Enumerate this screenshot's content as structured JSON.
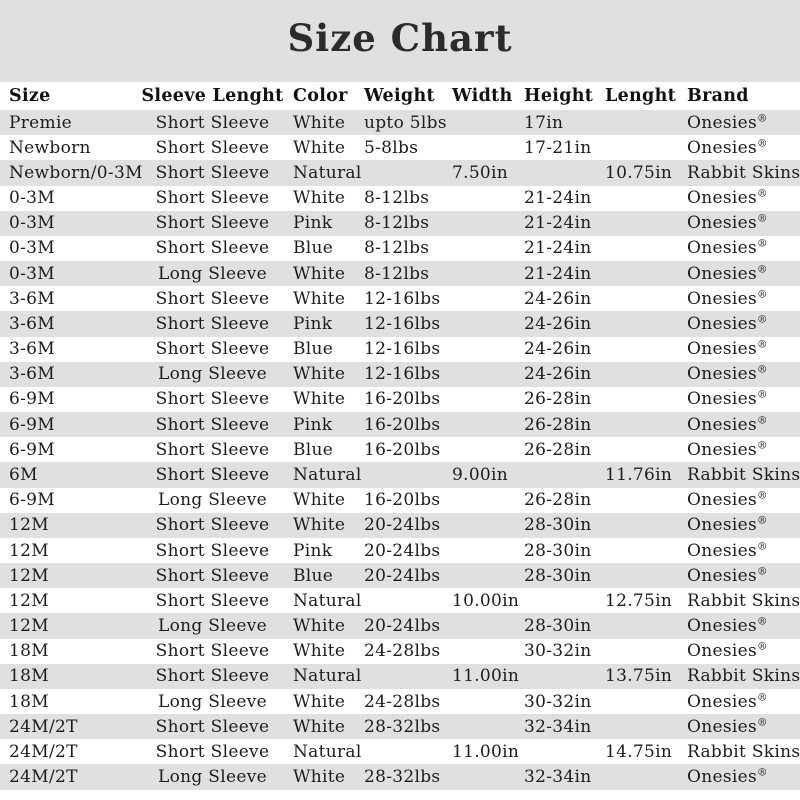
{
  "title": "Size Chart",
  "colors": {
    "band_gray": "#e0e0e0",
    "row_alt_gray": "#e0e0e0",
    "row_white": "#ffffff",
    "text": "#1c1c1c",
    "title_text": "#2b2b2b"
  },
  "chart_data": {
    "type": "table",
    "title": "Size Chart",
    "layout": {
      "stripe_pattern": "odd-rows-gray",
      "grid": false
    },
    "columns": [
      {
        "key": "size",
        "label": "Size"
      },
      {
        "key": "sleeve",
        "label": "Sleeve Lenght"
      },
      {
        "key": "color",
        "label": "Color"
      },
      {
        "key": "weight",
        "label": "Weight"
      },
      {
        "key": "width",
        "label": "Width"
      },
      {
        "key": "height",
        "label": "Height"
      },
      {
        "key": "lenght",
        "label": "Lenght"
      },
      {
        "key": "brand",
        "label": "Brand"
      }
    ],
    "rows": [
      [
        "Premie",
        "Short Sleeve",
        "White",
        "upto 5lbs",
        "",
        "17in",
        "",
        "Onesies®"
      ],
      [
        "Newborn",
        "Short Sleeve",
        "White",
        "5-8lbs",
        "",
        "17-21in",
        "",
        "Onesies®"
      ],
      [
        "Newborn/0-3M",
        "Short Sleeve",
        "Natural",
        "",
        "7.50in",
        "",
        "10.75in",
        "Rabbit Skins®"
      ],
      [
        "0-3M",
        "Short Sleeve",
        "White",
        "8-12lbs",
        "",
        "21-24in",
        "",
        "Onesies®"
      ],
      [
        "0-3M",
        "Short Sleeve",
        "Pink",
        "8-12lbs",
        "",
        "21-24in",
        "",
        "Onesies®"
      ],
      [
        "0-3M",
        "Short Sleeve",
        "Blue",
        "8-12lbs",
        "",
        "21-24in",
        "",
        "Onesies®"
      ],
      [
        "0-3M",
        "Long Sleeve",
        "White",
        "8-12lbs",
        "",
        "21-24in",
        "",
        "Onesies®"
      ],
      [
        "3-6M",
        "Short Sleeve",
        "White",
        "12-16lbs",
        "",
        "24-26in",
        "",
        "Onesies®"
      ],
      [
        "3-6M",
        "Short Sleeve",
        "Pink",
        "12-16lbs",
        "",
        "24-26in",
        "",
        "Onesies®"
      ],
      [
        "3-6M",
        "Short Sleeve",
        "Blue",
        "12-16lbs",
        "",
        "24-26in",
        "",
        "Onesies®"
      ],
      [
        "3-6M",
        "Long Sleeve",
        "White",
        "12-16lbs",
        "",
        "24-26in",
        "",
        "Onesies®"
      ],
      [
        "6-9M",
        "Short Sleeve",
        "White",
        "16-20lbs",
        "",
        "26-28in",
        "",
        "Onesies®"
      ],
      [
        "6-9M",
        "Short Sleeve",
        "Pink",
        "16-20lbs",
        "",
        "26-28in",
        "",
        "Onesies®"
      ],
      [
        "6-9M",
        "Short Sleeve",
        "Blue",
        "16-20lbs",
        "",
        "26-28in",
        "",
        "Onesies®"
      ],
      [
        "6M",
        "Short Sleeve",
        "Natural",
        "",
        "9.00in",
        "",
        "11.76in",
        "Rabbit Skins®"
      ],
      [
        "6-9M",
        "Long Sleeve",
        "White",
        "16-20lbs",
        "",
        "26-28in",
        "",
        "Onesies®"
      ],
      [
        "12M",
        "Short Sleeve",
        "White",
        "20-24lbs",
        "",
        "28-30in",
        "",
        "Onesies®"
      ],
      [
        "12M",
        "Short Sleeve",
        "Pink",
        "20-24lbs",
        "",
        "28-30in",
        "",
        "Onesies®"
      ],
      [
        "12M",
        "Short Sleeve",
        "Blue",
        "20-24lbs",
        "",
        "28-30in",
        "",
        "Onesies®"
      ],
      [
        "12M",
        "Short Sleeve",
        "Natural",
        "",
        "10.00in",
        "",
        "12.75in",
        "Rabbit Skins®"
      ],
      [
        "12M",
        "Long Sleeve",
        "White",
        "20-24lbs",
        "",
        "28-30in",
        "",
        "Onesies®"
      ],
      [
        "18M",
        "Short Sleeve",
        "White",
        "24-28lbs",
        "",
        "30-32in",
        "",
        "Onesies®"
      ],
      [
        "18M",
        "Short Sleeve",
        "Natural",
        "",
        "11.00in",
        "",
        "13.75in",
        "Rabbit Skins®"
      ],
      [
        "18M",
        "Long Sleeve",
        "White",
        "24-28lbs",
        "",
        "30-32in",
        "",
        "Onesies®"
      ],
      [
        "24M/2T",
        "Short Sleeve",
        "White",
        "28-32lbs",
        "",
        "32-34in",
        "",
        "Onesies®"
      ],
      [
        "24M/2T",
        "Short Sleeve",
        "Natural",
        "",
        "11.00in",
        "",
        "14.75in",
        "Rabbit Skins®"
      ],
      [
        "24M/2T",
        "Long Sleeve",
        "White",
        "28-32lbs",
        "",
        "32-34in",
        "",
        "Onesies®"
      ]
    ]
  }
}
